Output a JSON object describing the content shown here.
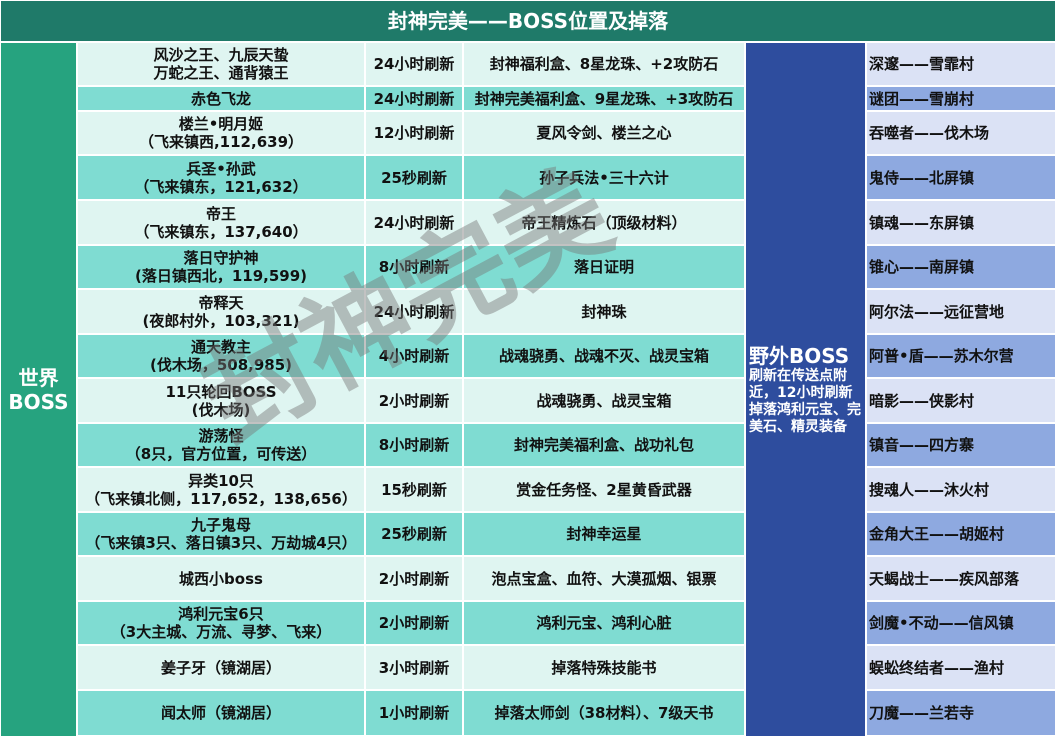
{
  "title": "封神完美——BOSS位置及掉落",
  "world_label": [
    "世界",
    "BOSS"
  ],
  "wild": {
    "title": "野外BOSS",
    "desc": "刷新在传送点附近，12小时刷新掉落鸿利元宝、完美石、精灵装备"
  },
  "watermark": "封神完美",
  "rows": [
    {
      "name": [
        "风沙之王、九辰天蛰",
        "万蛇之王、通背猿王"
      ],
      "refresh": "24小时刷新",
      "drops": "封神福利盒、8星龙珠、+2攻防石"
    },
    {
      "name": [
        "赤色飞龙"
      ],
      "refresh": "24小时刷新",
      "drops": "封神完美福利盒、9星龙珠、+3攻防石"
    },
    {
      "name": [
        "楼兰•明月姬",
        "（飞来镇西,112,639）"
      ],
      "refresh": "12小时刷新",
      "drops": "夏风令剑、楼兰之心"
    },
    {
      "name": [
        "兵圣•孙武",
        "（飞来镇东，121,632）"
      ],
      "refresh": "25秒刷新",
      "drops": "孙子兵法•三十六计"
    },
    {
      "name": [
        "帝王",
        "（飞来镇东，137,640）"
      ],
      "refresh": "24小时刷新",
      "drops": "帝王精炼石（顶级材料）"
    },
    {
      "name": [
        "落日守护神",
        "(落日镇西北，119,599)"
      ],
      "refresh": "8小时刷新",
      "drops": "落日证明"
    },
    {
      "name": [
        "帝释天",
        "(夜郎村外，103,321)"
      ],
      "refresh": "24小时刷新",
      "drops": "封神珠"
    },
    {
      "name": [
        "通天教主",
        "(伐木场，508,985)"
      ],
      "refresh": "4小时刷新",
      "drops": "战魂骁勇、战魂不灭、战灵宝箱"
    },
    {
      "name": [
        "11只轮回BOSS",
        "(伐木场)"
      ],
      "refresh": "2小时刷新",
      "drops": "战魂骁勇、战灵宝箱"
    },
    {
      "name": [
        "游荡怪",
        "（8只，官方位置，可传送）"
      ],
      "refresh": "8小时刷新",
      "drops": "封神完美福利盒、战功礼包"
    },
    {
      "name": [
        "异类10只",
        "（飞来镇北侧，117,652，138,656）"
      ],
      "refresh": "15秒刷新",
      "drops": "赏金任务怪、2星黄昏武器"
    },
    {
      "name": [
        "九子鬼母",
        "（飞来镇3只、落日镇3只、万劫城4只）"
      ],
      "refresh": "25秒刷新",
      "drops": "封神幸运星"
    },
    {
      "name": [
        "城西小boss"
      ],
      "refresh": "2小时刷新",
      "drops": "泡点宝盒、血符、大漠孤烟、银票"
    },
    {
      "name": [
        "鸿利元宝6只",
        "（3大主城、万流、寻梦、飞来）"
      ],
      "refresh": "2小时刷新",
      "drops": "鸿利元宝、鸿利心脏"
    },
    {
      "name": [
        "姜子牙（镜湖居）"
      ],
      "refresh": "3小时刷新",
      "drops": "掉落特殊技能书"
    },
    {
      "name": [
        "闻太师（镜湖居）"
      ],
      "refresh": "1小时刷新",
      "drops": "掉落太师剑（38材料）、7级天书"
    }
  ],
  "wild_list": [
    "深邃——雪霏村",
    "谜团——雪崩村",
    "吞噬者——伐木场",
    "鬼侍——北屏镇",
    "镇魂——东屏镇",
    "锥心——南屏镇",
    "阿尔法——远征营地",
    "阿普•盾——苏木尔营",
    "暗影——侠影村",
    "镇音——四方寨",
    "搜魂人——沐火村",
    "金角大王——胡姬村",
    "天蝎战士——疾风部落",
    "剑魔•不动——信风镇",
    "蜈蚣终结者——渔村",
    "刀魔——兰若寺"
  ]
}
